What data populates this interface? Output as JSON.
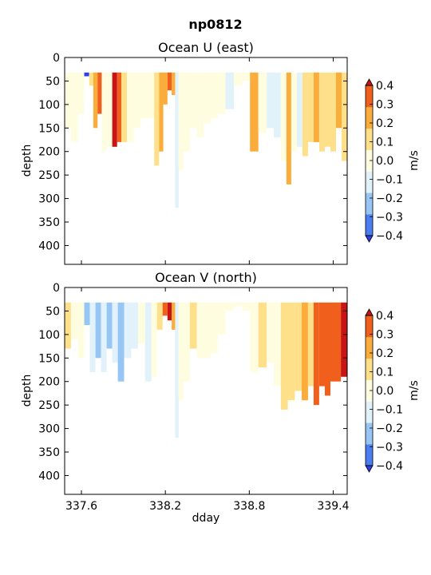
{
  "figure": {
    "suptitle": "np0812"
  },
  "colorbar": {
    "label": "m/s",
    "levels": [
      -0.4,
      -0.3,
      -0.2,
      -0.1,
      0.0,
      0.1,
      0.2,
      0.3,
      0.4
    ],
    "tick_labels": [
      "−0.4",
      "−0.3",
      "−0.2",
      "−0.1",
      "0.0",
      "0.1",
      "0.2",
      "0.3",
      "0.4"
    ],
    "colors": [
      "#2a40ee",
      "#4b7ff0",
      "#98c6f4",
      "#e2f2fb",
      "#fffde0",
      "#ffe08a",
      "#fbad3c",
      "#f0601c",
      "#c81414"
    ],
    "extend": "both"
  },
  "chart_data": [
    {
      "type": "heatmap",
      "title": "Ocean U (east)",
      "xlabel": "",
      "ylabel": "depth",
      "xlim": [
        337.48,
        339.5
      ],
      "ylim": [
        440,
        0
      ],
      "xticks": [
        337.6,
        338.2,
        338.8,
        339.4
      ],
      "xtick_labels": [
        "",
        "",
        "",
        ""
      ],
      "yticks": [
        0,
        50,
        100,
        150,
        200,
        250,
        300,
        350,
        400
      ],
      "ytick_labels": [
        "0",
        "50",
        "100",
        "150",
        "200",
        "250",
        "300",
        "350",
        "400"
      ],
      "columns": [
        {
          "x": 337.5,
          "v": 0.05,
          "d": 150
        },
        {
          "x": 337.55,
          "v": 0.05,
          "d": 180
        },
        {
          "x": 337.6,
          "v": 0.05,
          "d": 120
        },
        {
          "x": 337.64,
          "v": -0.35,
          "d": 40
        },
        {
          "x": 337.67,
          "v": 0.15,
          "d": 60
        },
        {
          "x": 337.7,
          "v": 0.25,
          "d": 150
        },
        {
          "x": 337.73,
          "v": 0.35,
          "d": 120
        },
        {
          "x": 337.76,
          "v": 0.05,
          "d": 200
        },
        {
          "x": 337.8,
          "v": 0.05,
          "d": 190
        },
        {
          "x": 337.84,
          "v": 0.4,
          "d": 190
        },
        {
          "x": 337.87,
          "v": 0.3,
          "d": 180
        },
        {
          "x": 337.9,
          "v": 0.15,
          "d": 180
        },
        {
          "x": 337.95,
          "v": 0.05,
          "d": 180
        },
        {
          "x": 338.0,
          "v": 0.05,
          "d": 150
        },
        {
          "x": 338.05,
          "v": 0.05,
          "d": 130
        },
        {
          "x": 338.1,
          "v": 0.05,
          "d": 130
        },
        {
          "x": 338.14,
          "v": 0.15,
          "d": 230
        },
        {
          "x": 338.17,
          "v": 0.25,
          "d": 200
        },
        {
          "x": 338.2,
          "v": 0.25,
          "d": 100
        },
        {
          "x": 338.23,
          "v": 0.35,
          "d": 70
        },
        {
          "x": 338.26,
          "v": 0.25,
          "d": 80
        },
        {
          "x": 338.28,
          "v": -0.05,
          "d": 320
        },
        {
          "x": 338.31,
          "v": 0.05,
          "d": 240
        },
        {
          "x": 338.35,
          "v": 0.05,
          "d": 200
        },
        {
          "x": 338.4,
          "v": 0.05,
          "d": 150
        },
        {
          "x": 338.45,
          "v": 0.05,
          "d": 170
        },
        {
          "x": 338.5,
          "v": 0.05,
          "d": 140
        },
        {
          "x": 338.55,
          "v": 0.05,
          "d": 130
        },
        {
          "x": 338.6,
          "v": 0.05,
          "d": 120
        },
        {
          "x": 338.66,
          "v": -0.05,
          "d": 110
        },
        {
          "x": 338.72,
          "v": 0.05,
          "d": 60
        },
        {
          "x": 338.78,
          "v": 0.05,
          "d": 50
        },
        {
          "x": 338.83,
          "v": 0.2,
          "d": 200
        },
        {
          "x": 338.9,
          "v": 0.05,
          "d": 160
        },
        {
          "x": 338.95,
          "v": -0.05,
          "d": 150
        },
        {
          "x": 339.0,
          "v": -0.05,
          "d": 170
        },
        {
          "x": 339.05,
          "v": 0.05,
          "d": 220
        },
        {
          "x": 339.08,
          "v": 0.25,
          "d": 270
        },
        {
          "x": 339.12,
          "v": 0.05,
          "d": 200
        },
        {
          "x": 339.16,
          "v": -0.05,
          "d": 190
        },
        {
          "x": 339.2,
          "v": 0.15,
          "d": 210
        },
        {
          "x": 339.24,
          "v": 0.15,
          "d": 180
        },
        {
          "x": 339.28,
          "v": 0.25,
          "d": 180
        },
        {
          "x": 339.32,
          "v": 0.15,
          "d": 200
        },
        {
          "x": 339.36,
          "v": 0.15,
          "d": 190
        },
        {
          "x": 339.4,
          "v": 0.15,
          "d": 200
        },
        {
          "x": 339.44,
          "v": 0.25,
          "d": 150
        },
        {
          "x": 339.48,
          "v": 0.15,
          "d": 220
        }
      ]
    },
    {
      "type": "heatmap",
      "title": "Ocean V (north)",
      "xlabel": "dday",
      "ylabel": "depth",
      "xlim": [
        337.48,
        339.5
      ],
      "ylim": [
        440,
        0
      ],
      "xticks": [
        337.6,
        338.2,
        338.8,
        339.4
      ],
      "xtick_labels": [
        "337.6",
        "338.2",
        "338.8",
        "339.4"
      ],
      "yticks": [
        0,
        50,
        100,
        150,
        200,
        250,
        300,
        350,
        400
      ],
      "ytick_labels": [
        "0",
        "50",
        "100",
        "150",
        "200",
        "250",
        "300",
        "350",
        "400"
      ],
      "columns": [
        {
          "x": 337.5,
          "v": 0.15,
          "d": 130
        },
        {
          "x": 337.55,
          "v": 0.05,
          "d": 110
        },
        {
          "x": 337.6,
          "v": 0.05,
          "d": 150
        },
        {
          "x": 337.64,
          "v": -0.15,
          "d": 80
        },
        {
          "x": 337.68,
          "v": -0.05,
          "d": 180
        },
        {
          "x": 337.72,
          "v": -0.15,
          "d": 150
        },
        {
          "x": 337.76,
          "v": -0.05,
          "d": 180
        },
        {
          "x": 337.8,
          "v": -0.15,
          "d": 130
        },
        {
          "x": 337.84,
          "v": -0.05,
          "d": 160
        },
        {
          "x": 337.88,
          "v": -0.15,
          "d": 200
        },
        {
          "x": 337.93,
          "v": -0.05,
          "d": 150
        },
        {
          "x": 337.98,
          "v": -0.05,
          "d": 130
        },
        {
          "x": 338.03,
          "v": 0.05,
          "d": 120
        },
        {
          "x": 338.08,
          "v": -0.05,
          "d": 200
        },
        {
          "x": 338.12,
          "v": 0.05,
          "d": 190
        },
        {
          "x": 338.16,
          "v": 0.15,
          "d": 90
        },
        {
          "x": 338.2,
          "v": 0.35,
          "d": 60
        },
        {
          "x": 338.23,
          "v": 0.4,
          "d": 70
        },
        {
          "x": 338.26,
          "v": 0.25,
          "d": 90
        },
        {
          "x": 338.28,
          "v": -0.05,
          "d": 320
        },
        {
          "x": 338.31,
          "v": 0.05,
          "d": 240
        },
        {
          "x": 338.35,
          "v": 0.05,
          "d": 200
        },
        {
          "x": 338.4,
          "v": 0.15,
          "d": 130
        },
        {
          "x": 338.45,
          "v": 0.05,
          "d": 150
        },
        {
          "x": 338.5,
          "v": 0.05,
          "d": 150
        },
        {
          "x": 338.55,
          "v": 0.05,
          "d": 140
        },
        {
          "x": 338.6,
          "v": 0.05,
          "d": 100
        },
        {
          "x": 338.66,
          "v": 0.05,
          "d": 50
        },
        {
          "x": 338.72,
          "v": 0.05,
          "d": 40
        },
        {
          "x": 338.78,
          "v": 0.05,
          "d": 50
        },
        {
          "x": 338.83,
          "v": 0.05,
          "d": 180
        },
        {
          "x": 338.9,
          "v": 0.15,
          "d": 170
        },
        {
          "x": 338.95,
          "v": 0.05,
          "d": 160
        },
        {
          "x": 339.0,
          "v": 0.05,
          "d": 210
        },
        {
          "x": 339.05,
          "v": 0.15,
          "d": 260
        },
        {
          "x": 339.1,
          "v": 0.15,
          "d": 240
        },
        {
          "x": 339.15,
          "v": 0.15,
          "d": 220
        },
        {
          "x": 339.2,
          "v": 0.25,
          "d": 240
        },
        {
          "x": 339.24,
          "v": 0.15,
          "d": 210
        },
        {
          "x": 339.28,
          "v": 0.35,
          "d": 250
        },
        {
          "x": 339.32,
          "v": 0.35,
          "d": 210
        },
        {
          "x": 339.36,
          "v": 0.35,
          "d": 230
        },
        {
          "x": 339.4,
          "v": 0.35,
          "d": 200
        },
        {
          "x": 339.44,
          "v": 0.35,
          "d": 200
        },
        {
          "x": 339.47,
          "v": 0.4,
          "d": 190
        }
      ]
    }
  ]
}
